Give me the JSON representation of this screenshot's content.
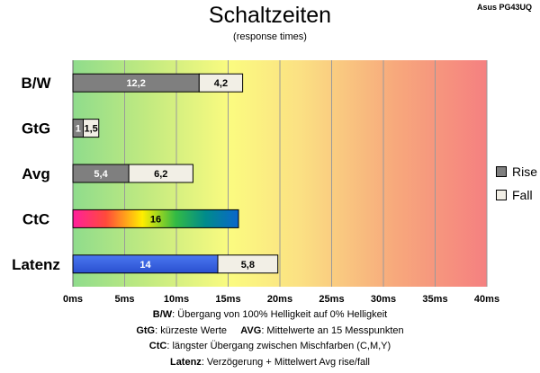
{
  "header": {
    "title": "Schaltzeiten",
    "subtitle": "(response times)",
    "model": "Asus PG43UQ"
  },
  "legend": [
    {
      "label": "Rise",
      "color": "#7f7f7f"
    },
    {
      "label": "Fall",
      "color": "#f2efe6"
    }
  ],
  "notes": [
    {
      "key": "B/W",
      "text": ":  Übergang von 100% Helligkeit auf 0% Helligkeit"
    },
    {
      "key": "GtG",
      "text": ": kürzeste  Werte",
      "key2": "AVG",
      "text2": ": Mittelwerte  an 15 Messpunkten"
    },
    {
      "key": "CtC",
      "text": ": längster Übergang  zwischen Mischfarben  (C,M,Y)"
    },
    {
      "key": "Latenz",
      "text": ": Verzögerung  + Mittelwert Avg rise/fall"
    }
  ],
  "chart_data": {
    "type": "bar",
    "orientation": "horizontal",
    "stacked": true,
    "categories": [
      "B/W",
      "GtG",
      "Avg",
      "CtC",
      "Latenz"
    ],
    "series": [
      {
        "name": "Rise",
        "values": [
          12.2,
          1,
          5.4,
          16,
          14
        ],
        "labels": [
          "12,2",
          "1",
          "5,4",
          "16",
          "14"
        ]
      },
      {
        "name": "Fall",
        "values": [
          4.2,
          1.5,
          6.2,
          0,
          5.8
        ],
        "labels": [
          "4,2",
          "1,5",
          "6,2",
          "",
          "5,8"
        ]
      }
    ],
    "segment_styles": {
      "CtC": "rainbow",
      "Latenz": "blue"
    },
    "xlim": [
      0,
      40
    ],
    "xticks": [
      0,
      5,
      10,
      15,
      20,
      25,
      30,
      35,
      40
    ],
    "tick_labels": [
      "0ms",
      "5ms",
      "10ms",
      "15ms",
      "20ms",
      "25ms",
      "30ms",
      "35ms",
      "40ms"
    ],
    "background": "gradient green-yellow-red",
    "grid": "vertical",
    "legend_position": "right"
  }
}
